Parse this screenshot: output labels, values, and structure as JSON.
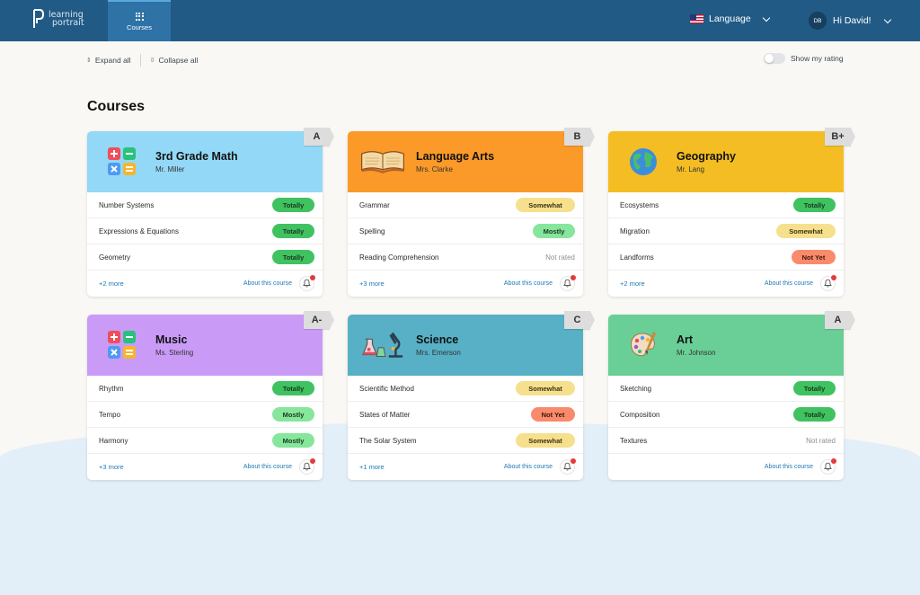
{
  "app": {
    "logo_line1": "learning",
    "logo_line2": "portrait"
  },
  "nav": {
    "courses_label": "Courses",
    "language_label": "Language",
    "user_initials": "DB",
    "greeting": "Hi David!"
  },
  "toolbar": {
    "expand_all": "Expand all",
    "collapse_all": "Collapse all",
    "show_rating": "Show my rating"
  },
  "page": {
    "title": "Courses"
  },
  "cards": [
    {
      "title": "3rd Grade Math",
      "teacher": "Mr. Miller",
      "grade": "A",
      "color": "#93d8f6",
      "icon": "math-operators-icon",
      "rows": [
        {
          "label": "Number Systems",
          "status": "Totally"
        },
        {
          "label": "Expressions & Equations",
          "status": "Totally"
        },
        {
          "label": "Geometry",
          "status": "Totally"
        }
      ],
      "more": "+2 more",
      "about": "About this course"
    },
    {
      "title": "Language Arts",
      "teacher": "Mrs. Clarke",
      "grade": "B",
      "color": "#fb9a28",
      "icon": "open-book-icon",
      "rows": [
        {
          "label": "Grammar",
          "status": "Somewhat"
        },
        {
          "label": "Spelling",
          "status": "Mostly"
        },
        {
          "label": "Reading Comprehension",
          "status": "Not rated"
        }
      ],
      "more": "+3 more",
      "about": "About this course"
    },
    {
      "title": "Geography",
      "teacher": "Mr. Lang",
      "grade": "B+",
      "color": "#f4bd23",
      "icon": "globe-icon",
      "rows": [
        {
          "label": "Ecosystems",
          "status": "Totally"
        },
        {
          "label": "Migration",
          "status": "Somewhat"
        },
        {
          "label": "Landforms",
          "status": "Not Yet"
        }
      ],
      "more": "+2 more",
      "about": "About this course"
    },
    {
      "title": "Music",
      "teacher": "Ms. Sterling",
      "grade": "A-",
      "color": "#c99bf7",
      "icon": "math-operators-icon",
      "rows": [
        {
          "label": "Rhythm",
          "status": "Totally"
        },
        {
          "label": "Tempo",
          "status": "Mostly"
        },
        {
          "label": "Harmony",
          "status": "Mostly"
        }
      ],
      "more": "+3 more",
      "about": "About this course"
    },
    {
      "title": "Science",
      "teacher": "Mrs. Emerson",
      "grade": "C",
      "color": "#57b0c5",
      "icon": "lab-microscope-icon",
      "rows": [
        {
          "label": "Scientific Method",
          "status": "Somewhat"
        },
        {
          "label": "States of Matter",
          "status": "Not Yet"
        },
        {
          "label": "The Solar System",
          "status": "Somewhat"
        }
      ],
      "more": "+1 more",
      "about": "About this course"
    },
    {
      "title": "Art",
      "teacher": "Mr. Johnson",
      "grade": "A",
      "color": "#69cf96",
      "icon": "paint-palette-icon",
      "rows": [
        {
          "label": "Sketching",
          "status": "Totally"
        },
        {
          "label": "Composition",
          "status": "Totally"
        },
        {
          "label": "Textures",
          "status": "Not rated"
        }
      ],
      "more": "",
      "about": "About this course"
    }
  ]
}
